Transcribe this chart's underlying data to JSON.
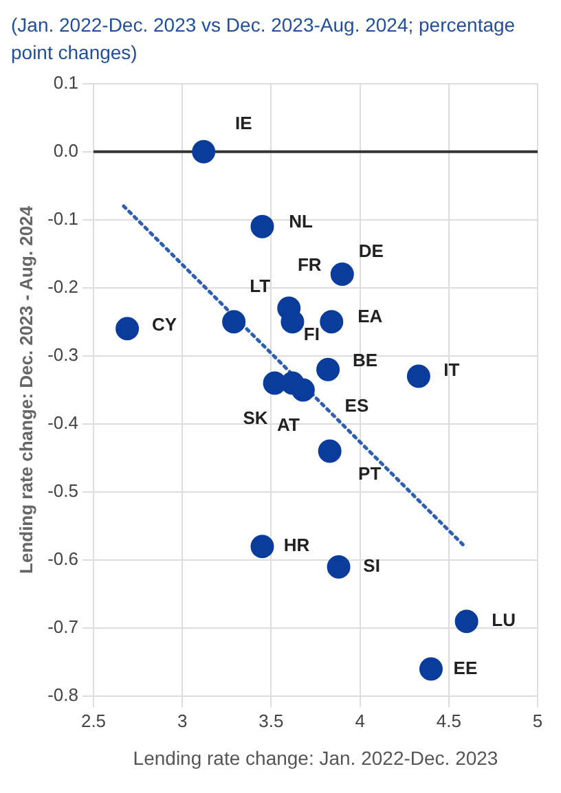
{
  "chart_data": {
    "type": "scatter",
    "title": "(Jan. 2022-Dec. 2023 vs Dec. 2023-Aug. 2024; percentage point changes)",
    "xlabel": "Lending rate change: Jan. 2022-Dec. 2023",
    "ylabel": "Lending rate change: Dec. 2023 - Aug. 2024",
    "series": [
      {
        "type": "scatter",
        "color": "#0a3c9c",
        "marker": "circle",
        "x": [
          3.12,
          3.45,
          3.9,
          3.6,
          3.62,
          3.84,
          2.69,
          3.29,
          3.82,
          4.33,
          3.52,
          3.62,
          3.68,
          3.83,
          3.45,
          3.88,
          4.6,
          4.4
        ],
        "values": [
          0,
          -0.11,
          -0.18,
          -0.23,
          -0.25,
          -0.25,
          -0.26,
          -0.25,
          -0.32,
          -0.33,
          -0.34,
          -0.34,
          -0.35,
          -0.44,
          -0.58,
          -0.61,
          -0.69,
          -0.76
        ]
      },
      {
        "type": "line",
        "color": "#2e5fb0",
        "marker": "none",
        "line_style": "dotted",
        "x": [
          2.67,
          4.59
        ],
        "values": [
          -0.08,
          -0.58
        ]
      }
    ],
    "annotations": [
      {
        "text": "IE",
        "x": 3.12,
        "y": 0
      },
      {
        "text": "NL",
        "x": 3.45,
        "y": -0.11
      },
      {
        "text": "DE",
        "x": 3.9,
        "y": -0.18
      },
      {
        "text": "FR",
        "x": 3.6,
        "y": -0.23
      },
      {
        "text": "FI",
        "x": 3.62,
        "y": -0.25
      },
      {
        "text": "EA",
        "x": 3.84,
        "y": -0.25
      },
      {
        "text": "CY",
        "x": 2.69,
        "y": -0.26
      },
      {
        "text": "LT",
        "x": 3.29,
        "y": -0.25
      },
      {
        "text": "BE",
        "x": 3.82,
        "y": -0.32
      },
      {
        "text": "IT",
        "x": 4.33,
        "y": -0.33
      },
      {
        "text": "SK",
        "x": 3.52,
        "y": -0.34
      },
      {
        "text": "AT",
        "x": 3.62,
        "y": -0.34
      },
      {
        "text": "ES",
        "x": 3.68,
        "y": -0.35
      },
      {
        "text": "PT",
        "x": 3.83,
        "y": -0.44
      },
      {
        "text": "HR",
        "x": 3.45,
        "y": -0.58
      },
      {
        "text": "SI",
        "x": 3.88,
        "y": -0.61
      },
      {
        "text": "LU",
        "x": 4.6,
        "y": -0.69
      },
      {
        "text": "EE",
        "x": 4.4,
        "y": -0.76
      }
    ],
    "ref_lines": [
      {
        "axis": "y",
        "value": 0,
        "color": "#333333"
      }
    ],
    "xlim": [
      2.5,
      5
    ],
    "xticks": [
      2.5,
      3,
      3.5,
      4,
      4.5,
      5
    ],
    "ylim": [
      -0.8,
      0.1
    ],
    "yticks": [
      0.1,
      {
        "value": 0,
        "label": "0.0"
      },
      -0.1,
      -0.2,
      -0.3,
      -0.4,
      -0.5,
      -0.6,
      -0.7,
      -0.8
    ],
    "grid": true,
    "legend": false
  }
}
